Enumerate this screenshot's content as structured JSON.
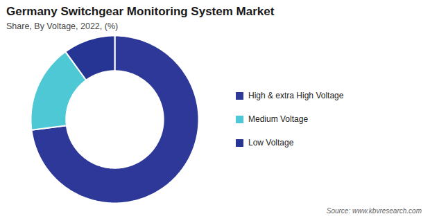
{
  "chart_data": {
    "type": "pie",
    "title": "Germany Switchgear Monitoring System Market",
    "subtitle": "Share, By Voltage, 2022, (%)",
    "categories": [
      "High & extra High Voltage",
      "Medium Voltage",
      "Low Voltage"
    ],
    "values": [
      73,
      17,
      10
    ],
    "colors": [
      "#2d3898",
      "#4ec8d4",
      "#263593"
    ],
    "legend": "right",
    "source": "Source: www.kbvresearch.com"
  }
}
